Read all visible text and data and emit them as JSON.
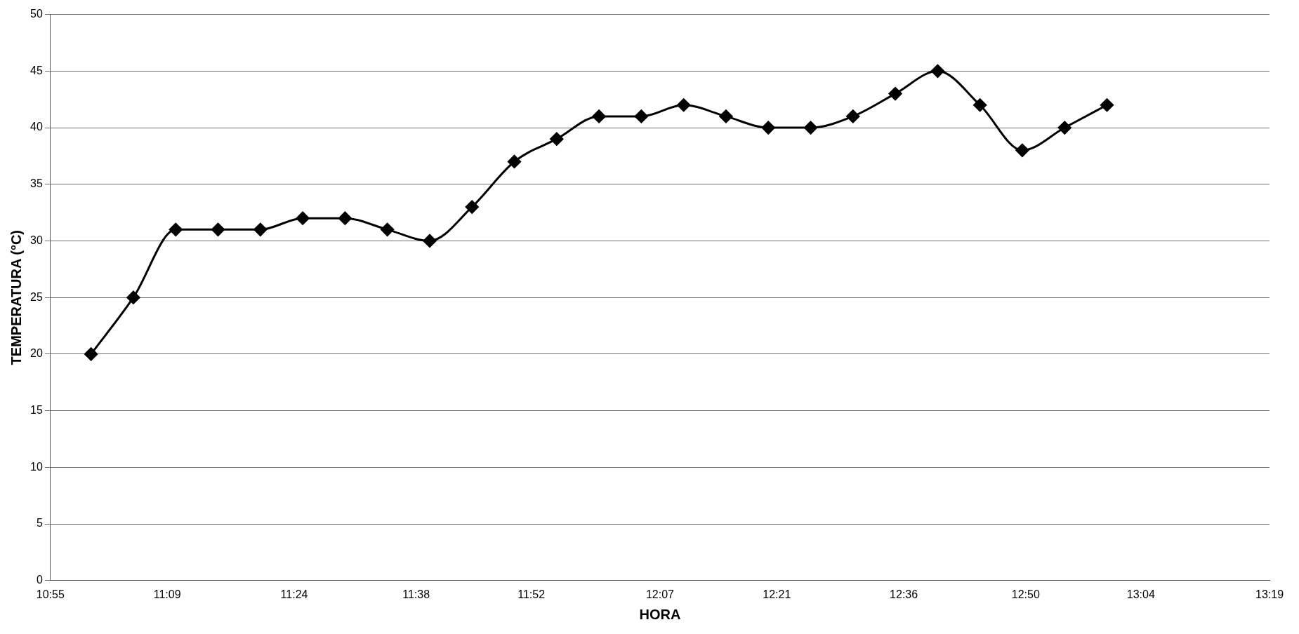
{
  "chart_data": {
    "type": "line",
    "xlabel": "HORA",
    "ylabel": "TEMPERATURA (°C)",
    "x": [
      11,
      11.0833,
      11.1667,
      11.25,
      11.3333,
      11.4167,
      11.5,
      11.5833,
      11.6667,
      11.75,
      11.8333,
      11.9167,
      12,
      12.0833,
      12.1667,
      12.25,
      12.3333,
      12.4167,
      12.5,
      12.5833,
      12.6667,
      12.75,
      12.8333,
      12.9167,
      13
    ],
    "series": [
      {
        "color": "#000000",
        "values": [
          20,
          25,
          31,
          31,
          31,
          32,
          32,
          31,
          30,
          33,
          37,
          39,
          41,
          41,
          42,
          41,
          40,
          40,
          41,
          43,
          45,
          42,
          38,
          40,
          42
        ]
      }
    ],
    "xlim": [
      10.92,
      13.32
    ],
    "xticks": [
      {
        "value": 10.92,
        "label": "10:55"
      },
      {
        "value": 11.15,
        "label": "11:09"
      },
      {
        "value": 11.4,
        "label": "11:24"
      },
      {
        "value": 11.64,
        "label": "11:38"
      },
      {
        "value": 11.8667,
        "label": "11:52"
      },
      {
        "value": 12.12,
        "label": "12:07"
      },
      {
        "value": 12.35,
        "label": "12:21"
      },
      {
        "value": 12.6,
        "label": "12:36"
      },
      {
        "value": 12.84,
        "label": "12:50"
      },
      {
        "value": 13.0667,
        "label": "13:04"
      },
      {
        "value": 13.32,
        "label": "13:19"
      }
    ],
    "ylim": [
      0,
      50
    ],
    "yticks": [
      0,
      5,
      10,
      15,
      20,
      25,
      30,
      35,
      40,
      45,
      50
    ],
    "grid": "y",
    "marker": "diamond",
    "line_style": "solid"
  }
}
